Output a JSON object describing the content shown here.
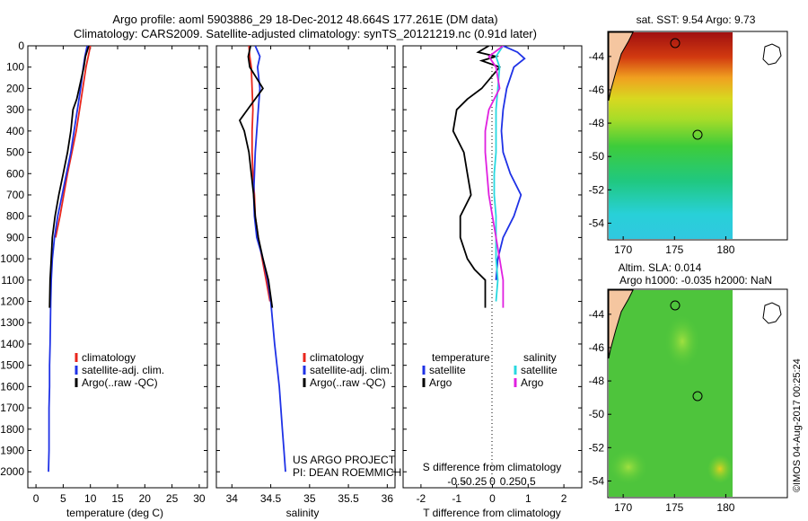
{
  "header": {
    "title_line1": "Argo profile: aoml 5903886_29 18-Dec-2012 48.664S 177.261E (DM data)",
    "title_line2": "Climatology: CARS2009. Satellite-adjusted climatology: synTS_20121219.nc (0.91d later)"
  },
  "colors": {
    "climatology": "#e8261c",
    "satellite": "#1f32e6",
    "argo": "#000000",
    "sal_satellite": "#28d8e0",
    "sal_argo": "#e020e0",
    "land": "#f5c6a0"
  },
  "chart_data": [
    {
      "type": "line",
      "id": "temperature",
      "xlabel": "temperature (deg C)",
      "ylim": [
        0,
        2075
      ],
      "y_reversed": true,
      "xlim": [
        -1.5,
        31.5
      ],
      "xticks": [
        0,
        5,
        10,
        15,
        20,
        25,
        30
      ],
      "yticks": [
        0,
        100,
        200,
        300,
        400,
        500,
        600,
        700,
        800,
        900,
        1000,
        1100,
        1200,
        1300,
        1400,
        1500,
        1600,
        1700,
        1800,
        1900,
        2000
      ],
      "legend": [
        "climatology",
        "satellite-adj. clim.",
        "Argo(..raw -QC)"
      ],
      "series": [
        {
          "name": "climatology",
          "color": "#e8261c",
          "x": [
            10.0,
            9.6,
            9.2,
            8.6,
            8.0,
            7.4,
            6.6,
            5.8,
            5.1,
            4.4,
            3.6
          ],
          "y": [
            0,
            50,
            100,
            200,
            300,
            400,
            500,
            600,
            700,
            800,
            900
          ]
        },
        {
          "name": "satellite-adj. clim.",
          "color": "#1f32e6",
          "x": [
            9.4,
            9.0,
            8.7,
            8.2,
            7.6,
            7.0,
            6.4,
            5.6,
            4.8,
            4.0,
            3.4,
            3.0,
            2.8,
            2.7,
            2.6,
            2.5,
            2.5,
            2.4,
            2.4,
            2.4,
            2.3
          ],
          "y": [
            0,
            50,
            100,
            200,
            300,
            400,
            500,
            600,
            700,
            800,
            900,
            1000,
            1100,
            1200,
            1400,
            1500,
            1600,
            1700,
            1800,
            1900,
            2000
          ]
        },
        {
          "name": "Argo(..raw -QC)",
          "color": "#000000",
          "x": [
            9.7,
            9.1,
            8.8,
            7.5,
            6.8,
            6.4,
            5.8,
            5.0,
            4.2,
            3.5,
            3.0,
            2.8,
            2.6,
            2.5
          ],
          "y": [
            0,
            50,
            100,
            250,
            300,
            400,
            500,
            600,
            700,
            800,
            900,
            1000,
            1100,
            1230
          ]
        }
      ]
    },
    {
      "type": "line",
      "id": "salinity",
      "xlabel": "salinity",
      "ylim": [
        0,
        2075
      ],
      "y_reversed": true,
      "xlim": [
        33.8,
        36.1
      ],
      "xticks": [
        34,
        34.5,
        35,
        35.5,
        36
      ],
      "xtick_labels": [
        "34",
        "34.5",
        "35",
        "35.5",
        "36"
      ],
      "legend": [
        "climatology",
        "satellite-adj. clim.",
        "Argo(..raw -QC)"
      ],
      "annotation": [
        "US ARGO PROJECT",
        "PI: DEAN ROEMMICH"
      ],
      "series": [
        {
          "name": "climatology",
          "color": "#e8261c",
          "x": [
            34.22,
            34.23,
            34.25,
            34.26,
            34.27,
            34.26,
            34.26,
            34.27,
            34.29,
            34.3,
            34.34,
            34.39,
            34.44,
            34.49
          ],
          "y": [
            0,
            50,
            100,
            200,
            300,
            400,
            500,
            600,
            700,
            800,
            900,
            1000,
            1100,
            1200
          ]
        },
        {
          "name": "satellite-adj. clim.",
          "color": "#1f32e6",
          "x": [
            34.3,
            34.36,
            34.33,
            34.36,
            34.34,
            34.32,
            34.3,
            34.29,
            34.28,
            34.29,
            34.32,
            34.4,
            34.46,
            34.5,
            34.55,
            34.58,
            34.61,
            34.63,
            34.65,
            34.67,
            34.69
          ],
          "y": [
            0,
            50,
            100,
            200,
            300,
            400,
            500,
            600,
            700,
            800,
            900,
            1000,
            1100,
            1200,
            1400,
            1500,
            1600,
            1700,
            1800,
            1900,
            2000
          ]
        },
        {
          "name": "Argo(..raw -QC)",
          "color": "#000000",
          "x": [
            34.24,
            34.21,
            34.23,
            34.4,
            34.2,
            34.1,
            34.16,
            34.22,
            34.25,
            34.28,
            34.3,
            34.34,
            34.4,
            34.47,
            34.52
          ],
          "y": [
            0,
            50,
            100,
            200,
            300,
            350,
            400,
            500,
            600,
            700,
            800,
            900,
            1000,
            1100,
            1230
          ]
        }
      ]
    },
    {
      "type": "line",
      "id": "difference",
      "xlabel": "T difference from climatology",
      "xlabel_top": "S difference from climatology",
      "ylim": [
        0,
        2075
      ],
      "y_reversed": true,
      "xlim": [
        -2.5,
        2.5
      ],
      "xticks": [
        -2,
        -1,
        0,
        1,
        2
      ],
      "s_ticks": [
        "-0.5",
        "-0.25",
        "0",
        "0.25",
        "0.5"
      ],
      "legend_groups": [
        {
          "title": "temperature",
          "items": [
            "satellite",
            "Argo"
          ]
        },
        {
          "title": "salinity",
          "items": [
            "satellite",
            "Argo"
          ]
        }
      ],
      "series": [
        {
          "name": "temperature satellite",
          "color": "#1f32e6",
          "x": [
            0.3,
            0.7,
            0.9,
            0.6,
            0.4,
            0.3,
            0.25,
            0.3,
            0.5,
            0.8,
            0.6,
            0.3,
            0.15,
            0.1
          ],
          "y": [
            0,
            30,
            60,
            100,
            200,
            300,
            400,
            500,
            600,
            700,
            800,
            900,
            1000,
            1100
          ]
        },
        {
          "name": "temperature Argo",
          "color": "#000000",
          "x": [
            -0.1,
            -0.4,
            0.1,
            -0.3,
            0.2,
            -0.3,
            -0.7,
            -1.0,
            -1.1,
            -0.8,
            -0.7,
            -0.6,
            -0.9,
            -0.9,
            -0.7,
            -0.5,
            -0.2,
            -0.2
          ],
          "y": [
            0,
            30,
            50,
            70,
            100,
            200,
            250,
            300,
            400,
            500,
            600,
            700,
            800,
            900,
            1000,
            1050,
            1100,
            1230
          ]
        },
        {
          "name": "salinity satellite",
          "color": "#28d8e0",
          "x": [
            0.3,
            0.1,
            0.2,
            0.15,
            0.1,
            0.1,
            0.1,
            0.05,
            0.05,
            0.1,
            0.1,
            0.1,
            0.15,
            0.1
          ],
          "y": [
            0,
            50,
            100,
            200,
            300,
            400,
            500,
            600,
            700,
            800,
            900,
            1000,
            1100,
            1200
          ]
        },
        {
          "name": "salinity Argo",
          "color": "#e020e0",
          "x": [
            0.3,
            -0.1,
            0.1,
            0.2,
            -0.1,
            -0.2,
            -0.2,
            -0.15,
            -0.1,
            0.0,
            0.1,
            0.2,
            0.3,
            0.3
          ],
          "y": [
            0,
            50,
            100,
            200,
            300,
            400,
            500,
            600,
            700,
            800,
            900,
            1000,
            1100,
            1230
          ]
        }
      ]
    },
    {
      "type": "heatmap",
      "id": "sst_map",
      "title": "sat. SST: 9.54 Argo: 9.73",
      "xticks": [
        170,
        175,
        180
      ],
      "yticks": [
        -44,
        -46,
        -48,
        -50,
        -52,
        -54
      ],
      "xlim": [
        168.5,
        186
      ],
      "ylim": [
        -55,
        -42.5
      ]
    },
    {
      "type": "heatmap",
      "id": "sla_map",
      "title_line1": "Altim. SLA: 0.014",
      "title_line2": "Argo h1000: -0.035 h2000: NaN",
      "xticks": [
        170,
        175,
        180
      ],
      "yticks": [
        -44,
        -46,
        -48,
        -50,
        -52,
        -54
      ],
      "xlim": [
        168.5,
        186
      ],
      "ylim": [
        -55,
        -42.5
      ]
    }
  ],
  "credit": "©IMOS 04-Aug-2017 00:25:24"
}
